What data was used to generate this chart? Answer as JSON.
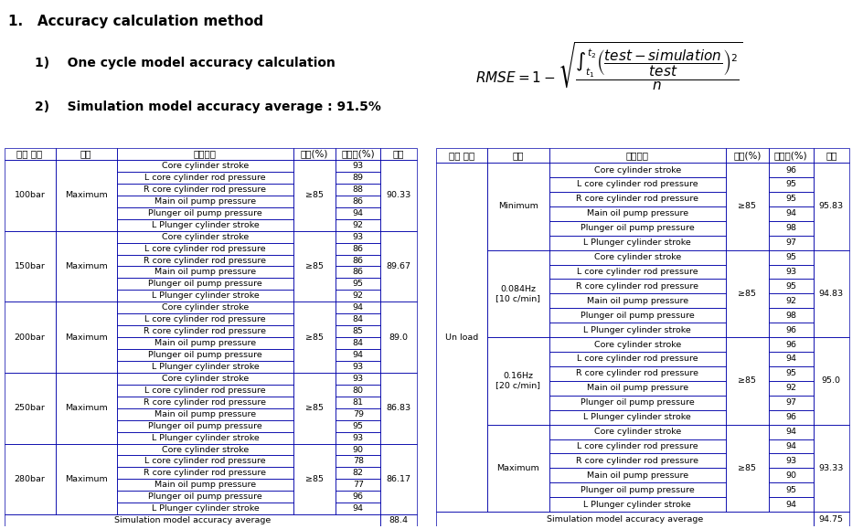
{
  "title1": "1.   Accuracy calculation method",
  "title2": "1)    One cycle model accuracy calculation",
  "title3": "2)    Simulation model accuracy average : 91.5%",
  "header": [
    "부하 조건",
    "타수",
    "평가항목",
    "목표(%)",
    "정확도(%)",
    "평균"
  ],
  "left_table": {
    "groups": [
      {
        "condition": "100bar",
        "speed": "Maximum",
        "items": [
          "Core cylinder stroke",
          "L core cylinder rod pressure",
          "R core cylinder rod pressure",
          "Main oil pump pressure",
          "Plunger oil pump pressure",
          "L Plunger cylinder stroke"
        ],
        "accuracy": [
          93,
          89,
          88,
          86,
          94,
          92
        ],
        "target": "≥85",
        "avg": 90.33
      },
      {
        "condition": "150bar",
        "speed": "Maximum",
        "items": [
          "Core cylinder stroke",
          "L core cylinder rod pressure",
          "R core cylinder rod pressure",
          "Main oil pump pressure",
          "Plunger oil pump pressure",
          "L Plunger cylinder stroke"
        ],
        "accuracy": [
          93,
          86,
          86,
          86,
          95,
          92
        ],
        "target": "≥85",
        "avg": 89.67
      },
      {
        "condition": "200bar",
        "speed": "Maximum",
        "items": [
          "Core cylinder stroke",
          "L core cylinder rod pressure",
          "R core cylinder rod pressure",
          "Main oil pump pressure",
          "Plunger oil pump pressure",
          "L Plunger cylinder stroke"
        ],
        "accuracy": [
          94,
          84,
          85,
          84,
          94,
          93
        ],
        "target": "≥85",
        "avg": 89.0
      },
      {
        "condition": "250bar",
        "speed": "Maximum",
        "items": [
          "Core cylinder stroke",
          "L core cylinder rod pressure",
          "R core cylinder rod pressure",
          "Main oil pump pressure",
          "Plunger oil pump pressure",
          "L Plunger cylinder stroke"
        ],
        "accuracy": [
          93,
          80,
          81,
          79,
          95,
          93
        ],
        "target": "≥85",
        "avg": 86.83
      },
      {
        "condition": "280bar",
        "speed": "Maximum",
        "items": [
          "Core cylinder stroke",
          "L core cylinder rod pressure",
          "R core cylinder rod pressure",
          "Main oil pump pressure",
          "Plunger oil pump pressure",
          "L Plunger cylinder stroke"
        ],
        "accuracy": [
          90,
          78,
          82,
          77,
          96,
          94
        ],
        "target": "≥85",
        "avg": 86.17
      }
    ],
    "footer_label": "Simulation model accuracy average",
    "footer_avg": 88.4
  },
  "right_table": {
    "main_condition": "Un load",
    "groups": [
      {
        "condition": "Un load",
        "speed": "Minimum",
        "items": [
          "Core cylinder stroke",
          "L core cylinder rod pressure",
          "R core cylinder rod pressure",
          "Main oil pump pressure",
          "Plunger oil pump pressure",
          "L Plunger cylinder stroke"
        ],
        "accuracy": [
          96,
          95,
          95,
          94,
          98,
          97
        ],
        "target": "≥85",
        "avg": 95.83
      },
      {
        "condition": "Un load",
        "speed": "0.084Hz\n[10 c/min]",
        "items": [
          "Core cylinder stroke",
          "L core cylinder rod pressure",
          "R core cylinder rod pressure",
          "Main oil pump pressure",
          "Plunger oil pump pressure",
          "L Plunger cylinder stroke"
        ],
        "accuracy": [
          95,
          93,
          95,
          92,
          98,
          96
        ],
        "target": "≥85",
        "avg": 94.83
      },
      {
        "condition": "Un load",
        "speed": "0.16Hz\n[20 c/min]",
        "items": [
          "Core cylinder stroke",
          "L core cylinder rod pressure",
          "R core cylinder rod pressure",
          "Main oil pump pressure",
          "Plunger oil pump pressure",
          "L Plunger cylinder stroke"
        ],
        "accuracy": [
          96,
          94,
          95,
          92,
          97,
          96
        ],
        "target": "≥85",
        "avg": 95.0
      },
      {
        "condition": "Un load",
        "speed": "Maximum",
        "items": [
          "Core cylinder stroke",
          "L core cylinder rod pressure",
          "R core cylinder rod pressure",
          "Main oil pump pressure",
          "Plunger oil pump pressure",
          "L Plunger cylinder stroke"
        ],
        "accuracy": [
          94,
          94,
          93,
          90,
          95,
          94
        ],
        "target": "≥85",
        "avg": 93.33
      }
    ],
    "footer_label": "Simulation model accuracy average",
    "footer_avg": 94.75
  },
  "border_color": "#0000AA",
  "text_color": "#000000",
  "header_bg": "#FFFFFF",
  "row_bg": "#FFFFFF",
  "font_size_header": 7.5,
  "font_size_body": 6.8,
  "font_size_title1": 11,
  "font_size_title2": 10,
  "font_size_title3": 10
}
